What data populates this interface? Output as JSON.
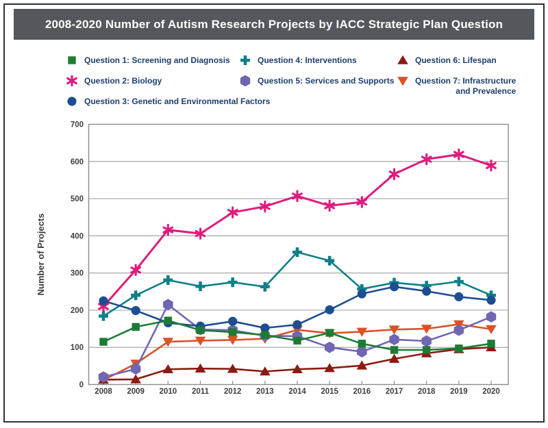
{
  "title": "2008-2020 Number of Autism Research Projects by IACC Strategic Plan Question",
  "legend": {
    "items": [
      {
        "label": "Question 1: Screening and Diagnosis"
      },
      {
        "label": "Question 2: Biology"
      },
      {
        "label": "Question 3: Genetic and Environmental Factors"
      },
      {
        "label": "Question 4: Interventions"
      },
      {
        "label": "Question 5: Services and Supports"
      },
      {
        "label": "Question 6: Lifespan"
      },
      {
        "label": "Question 7: Infrastructure",
        "label2": "and Prevalence"
      }
    ]
  },
  "axes": {
    "ylabel": "Number of Projects",
    "ytick_labels": [
      "0",
      "100",
      "200",
      "300",
      "400",
      "500",
      "600",
      "700"
    ],
    "xtick_labels": [
      "2008",
      "2009",
      "2010",
      "2011",
      "2012",
      "2013",
      "2014",
      "2015",
      "2016",
      "2017",
      "2018",
      "2019",
      "2020"
    ]
  },
  "colors": {
    "title_bar_bg": "#54585d",
    "title_text": "#ffffff",
    "legend_text": "#1c3e6e",
    "axis_text": "#3e3e3e",
    "gridline": "#a8a8a8",
    "plot_border": "#8c8c8c"
  },
  "chart_data": {
    "type": "line",
    "title": "2008-2020 Number of Autism Research Projects by IACC Strategic Plan Question",
    "xlabel": "",
    "ylabel": "Number of Projects",
    "x": [
      2008,
      2009,
      2010,
      2011,
      2012,
      2013,
      2014,
      2015,
      2016,
      2017,
      2018,
      2019,
      2020
    ],
    "ylim": [
      0,
      700
    ],
    "yticks": [
      0,
      100,
      200,
      300,
      400,
      500,
      600,
      700
    ],
    "grid": true,
    "legend_position": "top",
    "series": [
      {
        "name": "Question 1: Screening and Diagnosis",
        "marker": "square",
        "color": "#1e7b34",
        "values": [
          115,
          155,
          172,
          146,
          141,
          133,
          118,
          139,
          110,
          93,
          93,
          97,
          110
        ]
      },
      {
        "name": "Question 2: Biology",
        "marker": "asterisk",
        "color": "#df1b7e",
        "values": [
          210,
          308,
          416,
          406,
          463,
          479,
          507,
          481,
          491,
          566,
          606,
          619,
          589
        ]
      },
      {
        "name": "Question 3: Genetic and Environmental Factors",
        "marker": "circle",
        "color": "#1c4e90",
        "values": [
          225,
          199,
          166,
          157,
          170,
          152,
          161,
          201,
          244,
          263,
          251,
          236,
          227
        ]
      },
      {
        "name": "Question 4: Interventions",
        "marker": "plus",
        "color": "#0e7f88",
        "values": [
          184,
          240,
          281,
          264,
          275,
          263,
          356,
          333,
          257,
          274,
          266,
          277,
          240
        ]
      },
      {
        "name": "Question 5: Services and Supports",
        "marker": "hexagon",
        "color": "#7066b2",
        "values": [
          20,
          42,
          215,
          148,
          146,
          131,
          130,
          100,
          88,
          121,
          117,
          146,
          182
        ]
      },
      {
        "name": "Question 6: Lifespan",
        "marker": "triangle-up",
        "color": "#8c1a12",
        "values": [
          13,
          14,
          41,
          43,
          42,
          35,
          41,
          44,
          51,
          69,
          84,
          95,
          100
        ]
      },
      {
        "name": "Question 7: Infrastructure and Prevalence",
        "marker": "triangle-down",
        "color": "#da5226",
        "values": [
          12,
          56,
          115,
          118,
          120,
          123,
          147,
          138,
          142,
          148,
          150,
          162,
          149
        ]
      }
    ]
  }
}
